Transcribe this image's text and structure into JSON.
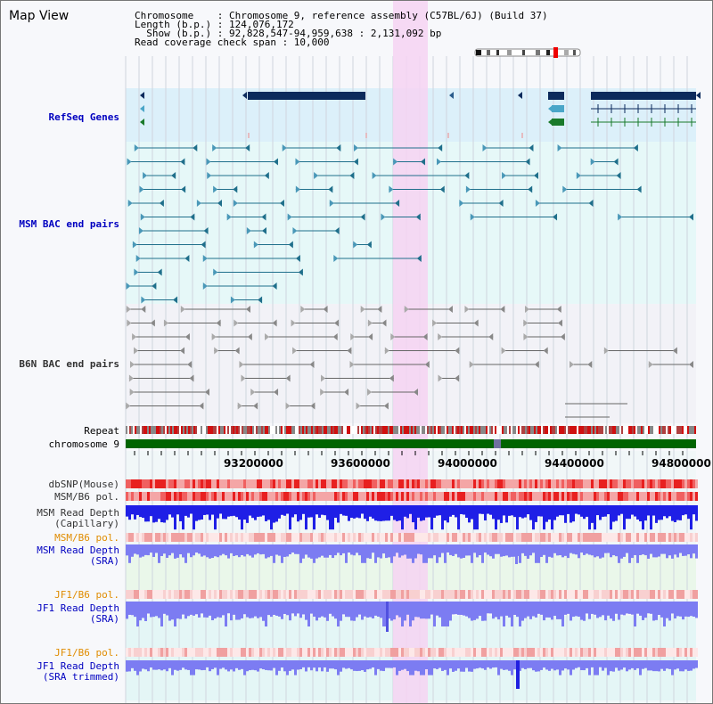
{
  "title": "Map View",
  "header": {
    "line1": "Chromosome    : Chromosome 9, reference assembly (C57BL/6J) (Build 37)",
    "line2": "Length (b.p.) : 124,076,172",
    "line3": "  Show (b.p.) : 92,828,547-94,959,638 : 2,131,092 bp",
    "line4": "Read coverage check span : 10,000"
  },
  "tracks": {
    "refseq": "RefSeq Genes",
    "msm_bac": "MSM BAC end pairs",
    "b6n_bac": "B6N BAC end pairs",
    "repeat": "Repeat",
    "chromosome": "chromosome 9",
    "dbsnp": "dbSNP(Mouse)",
    "msm_pol": "MSM/B6 pol.",
    "msm_depth_cap_1": "MSM Read Depth",
    "msm_depth_cap_2": "(Capillary)",
    "msm_pol_sra": "MSM/B6 pol.",
    "msm_depth_sra_1": "MSM Read Depth",
    "msm_depth_sra_2": "(SRA)",
    "jf1_pol": "JF1/B6 pol.",
    "jf1_depth_1": "JF1 Read Depth",
    "jf1_depth_2": "(SRA)",
    "jf1_pol_t": "JF1/B6 pol.",
    "jf1_depth_t_1": "JF1 Read Depth",
    "jf1_depth_t_2": "(SRA trimmed)"
  },
  "axis_ticks": [
    "93200000",
    "93600000",
    "94000000",
    "94400000",
    "94800000"
  ],
  "colors": {
    "refseq_bg": "#dcf0fa",
    "msm_bg": "#e6f8f8",
    "b6n_bg": "#f2f2f7",
    "highlight": "#f6d4f2",
    "depth_blue": "#1f1fe6",
    "depth_light": "#7c7cf2",
    "chromosome": "#006400",
    "polymorphism": "#e84040"
  }
}
